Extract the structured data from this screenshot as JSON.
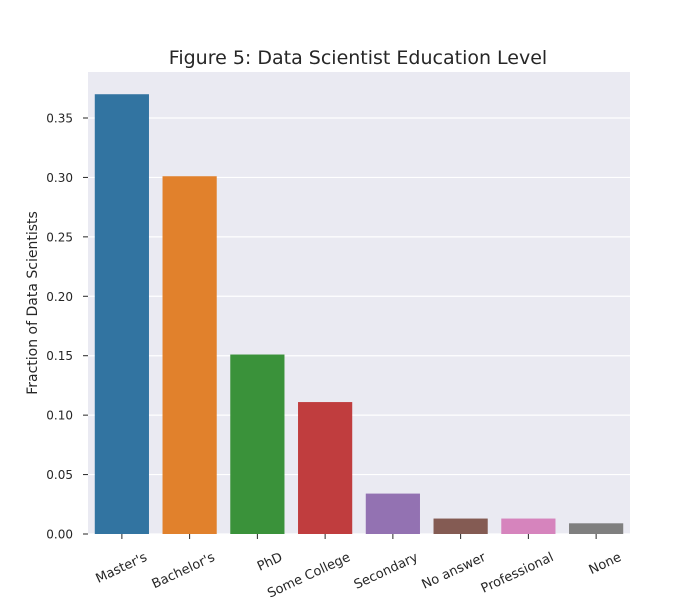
{
  "chart_data": {
    "type": "bar",
    "title": "Figure 5: Data Scientist Education Level",
    "xlabel": "",
    "ylabel": "Fraction of Data Scientists",
    "categories": [
      "Master's",
      "Bachelor's",
      "PhD",
      "Some College",
      "Secondary",
      "No answer",
      "Professional",
      "None"
    ],
    "values": [
      0.37,
      0.301,
      0.151,
      0.111,
      0.034,
      0.013,
      0.013,
      0.009
    ],
    "colors": [
      "#3274a1",
      "#e1812c",
      "#3a923a",
      "#c03d3e",
      "#9372b2",
      "#845b53",
      "#d684bd",
      "#7f7f7f"
    ],
    "ylim": [
      0,
      0.3887
    ],
    "yticks": [
      0.0,
      0.05,
      0.1,
      0.15,
      0.2,
      0.25,
      0.3,
      0.35
    ],
    "ytick_labels": [
      "0.00",
      "0.05",
      "0.10",
      "0.15",
      "0.20",
      "0.25",
      "0.30",
      "0.35"
    ],
    "grid": true,
    "style": {
      "background": "#eaeaf2",
      "grid_color": "#ffffff",
      "text_color": "#262626"
    }
  }
}
